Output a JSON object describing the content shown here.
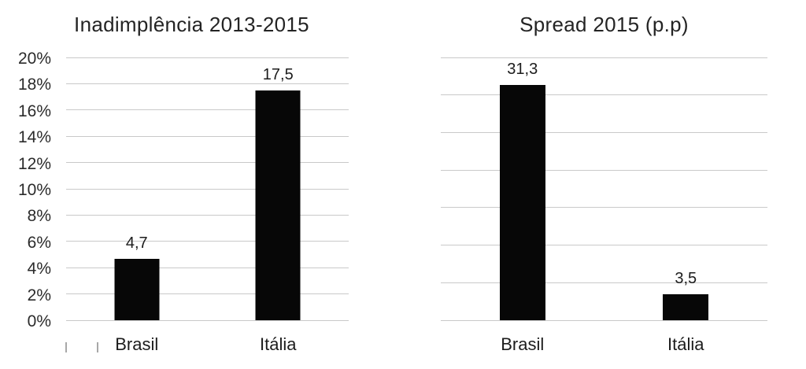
{
  "page": {
    "background": "#ffffff",
    "bar_color": "#070707",
    "gridline_color": "#c9c9c9",
    "text_color": "#1f1f1f"
  },
  "chart_data": [
    {
      "type": "bar",
      "title": "Inadimplência 2013-2015",
      "categories": [
        "Brasil",
        "Itália"
      ],
      "values": [
        4.7,
        17.5
      ],
      "value_labels": [
        "4,7",
        "17,5"
      ],
      "xlabel": "",
      "ylabel": "",
      "ylim": [
        0,
        20
      ],
      "axis": {
        "min": 0,
        "max": 20,
        "step": 2,
        "show_tick_labels": true,
        "tick_labels": [
          "0%",
          "2%",
          "4%",
          "6%",
          "8%",
          "10%",
          "12%",
          "14%",
          "16%",
          "18%",
          "20%"
        ]
      },
      "grid": true,
      "legend": false,
      "bar_color": "#070707"
    },
    {
      "type": "bar",
      "title": "Spread 2015 (p.p)",
      "categories": [
        "Brasil",
        "Itália"
      ],
      "values": [
        31.3,
        3.5
      ],
      "value_labels": [
        "31,3",
        "3,5"
      ],
      "xlabel": "",
      "ylabel": "",
      "ylim": [
        0,
        35
      ],
      "axis": {
        "min": 0,
        "max": 35,
        "step": 5,
        "show_tick_labels": false,
        "tick_labels": []
      },
      "grid": true,
      "legend": false,
      "bar_color": "#070707"
    }
  ]
}
